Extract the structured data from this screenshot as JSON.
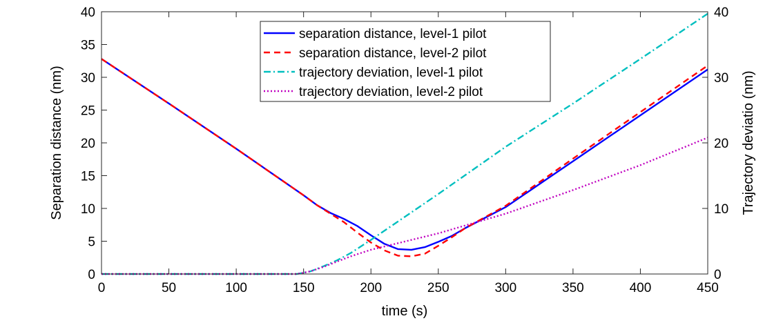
{
  "chart_data": {
    "type": "line",
    "title": "",
    "xlabel": "time (s)",
    "ylabel_left": "Separation distance (nm)",
    "ylabel_right": "Trajectory deviatio (nm)",
    "xlim": [
      0,
      450
    ],
    "ylim_left": [
      0,
      40
    ],
    "ylim_right": [
      0,
      40
    ],
    "xticks": [
      0,
      50,
      100,
      150,
      200,
      250,
      300,
      350,
      400,
      450
    ],
    "yticks_left": [
      0,
      5,
      10,
      15,
      20,
      25,
      30,
      35,
      40
    ],
    "yticks_right": [
      0,
      10,
      20,
      30,
      40
    ],
    "grid": false,
    "legend_position": "top-center",
    "series": [
      {
        "name": "separation distance, level-1 pilot",
        "axis": "left",
        "color": "#0000ff",
        "style": "solid",
        "x": [
          0,
          50,
          100,
          150,
          160,
          170,
          180,
          190,
          200,
          210,
          220,
          230,
          240,
          250,
          260,
          270,
          300,
          350,
          400,
          450
        ],
        "y": [
          32.8,
          26.0,
          19.1,
          12.0,
          10.5,
          9.3,
          8.4,
          7.3,
          5.9,
          4.6,
          3.8,
          3.7,
          4.1,
          4.9,
          5.8,
          7.0,
          10.2,
          17.2,
          24.2,
          31.2
        ]
      },
      {
        "name": "separation distance, level-2 pilot",
        "axis": "left",
        "color": "#ff0000",
        "style": "dashed",
        "x": [
          0,
          50,
          100,
          150,
          160,
          170,
          180,
          190,
          200,
          210,
          220,
          230,
          240,
          250,
          260,
          270,
          300,
          350,
          400,
          450
        ],
        "y": [
          32.8,
          26.0,
          19.1,
          12.0,
          10.5,
          9.2,
          7.9,
          6.3,
          4.8,
          3.6,
          2.8,
          2.7,
          3.1,
          4.3,
          5.6,
          7.0,
          10.4,
          17.6,
          24.7,
          31.8
        ]
      },
      {
        "name": "trajectory deviation, level-1 pilot",
        "axis": "right",
        "color": "#00bfbf",
        "style": "dashdot",
        "x": [
          0,
          145,
          155,
          165,
          175,
          185,
          200,
          250,
          300,
          350,
          400,
          450
        ],
        "y": [
          0,
          0,
          0.4,
          1.2,
          2.1,
          3.2,
          5.2,
          12.2,
          19.4,
          26.0,
          32.8,
          39.7
        ]
      },
      {
        "name": "trajectory deviation, level-2 pilot",
        "axis": "right",
        "color": "#bf00bf",
        "style": "dotted",
        "x": [
          0,
          145,
          155,
          165,
          175,
          185,
          200,
          250,
          300,
          350,
          400,
          450
        ],
        "y": [
          0,
          0,
          0.4,
          1.1,
          1.9,
          2.7,
          3.7,
          6.2,
          9.2,
          12.8,
          16.6,
          20.8
        ]
      }
    ]
  }
}
